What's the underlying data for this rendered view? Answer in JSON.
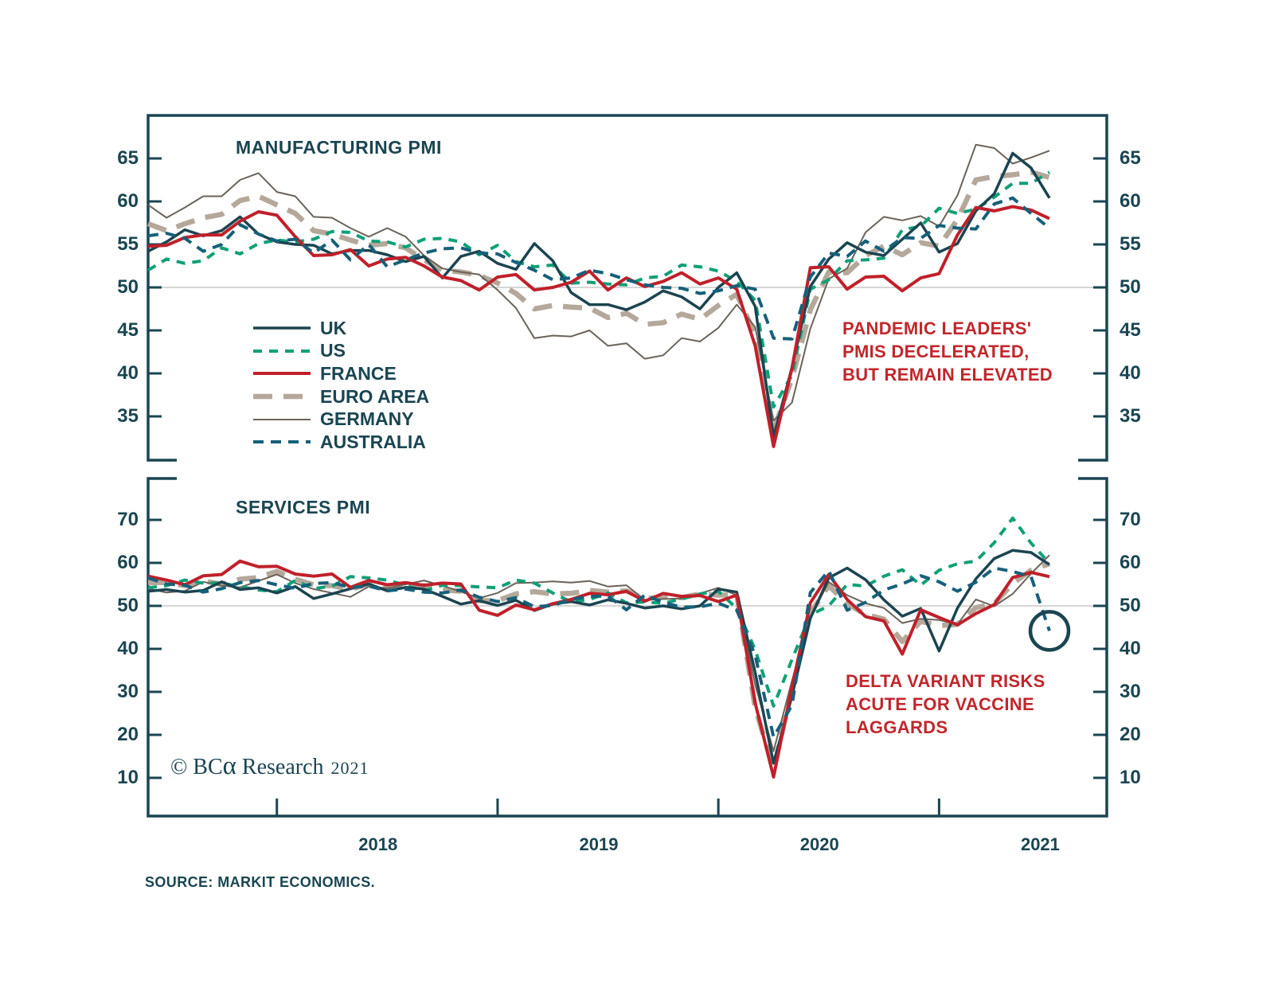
{
  "figure": {
    "background": "#ffffff",
    "axis_color": "#1A4552",
    "grid_color": "#C9C9C9",
    "copyright_prefix": "© BC",
    "copyright_alpha": "α",
    "copyright_suffix": " Research",
    "copyright_year": "2021",
    "source": "SOURCE: MARKIT ECONOMICS."
  },
  "legend": {
    "position": "inside-top-panel-left",
    "entries": [
      {
        "label": "UK",
        "color": "#1B4450",
        "width": 3.5,
        "dash": null
      },
      {
        "label": "US",
        "color": "#0FA077",
        "width": 4,
        "dash": "11 9"
      },
      {
        "label": "FRANCE",
        "color": "#C0202A",
        "width": 4,
        "dash": null
      },
      {
        "label": "EURO AREA",
        "color": "#B4A89A",
        "width": 6.5,
        "dash": "24 14"
      },
      {
        "label": "GERMANY",
        "color": "#6B6359",
        "width": 2,
        "dash": null
      },
      {
        "label": "AUSTRALIA",
        "color": "#16607A",
        "width": 4,
        "dash": "13 9"
      }
    ]
  },
  "x_axis": {
    "year_labels": [
      "2018",
      "2019",
      "2020",
      "2021"
    ]
  },
  "annotations": {
    "manufacturing": {
      "color": "#C1262B",
      "lines": [
        "PANDEMIC LEADERS'",
        "PMIS DECELERATED,",
        "BUT REMAIN ELEVATED"
      ]
    },
    "services": {
      "color": "#C1262B",
      "lines": [
        "DELTA VARIANT RISKS",
        "ACUTE FOR VACCINE",
        "LAGGARDS"
      ]
    },
    "circle": {
      "panel": "SERVICES PMI",
      "series": "AUSTRALIA",
      "month_index": 49,
      "value": 44.2,
      "radius": 24,
      "color": "#1A4552"
    }
  },
  "chart_data": [
    {
      "type": "line",
      "title": "MANUFACTURING PMI",
      "x_start": "2017-06",
      "x_end": "2021-07",
      "x_freq": "monthly",
      "ylim": [
        31,
        70
      ],
      "yticks": [
        65,
        60,
        55,
        50,
        45,
        40,
        35
      ],
      "gridline_at": 50,
      "series": [
        {
          "name": "UK",
          "values": [
            54.2,
            55.3,
            56.7,
            56.0,
            56.6,
            58.2,
            56.2,
            55.3,
            55.0,
            54.9,
            53.9,
            54.3,
            54.3,
            53.8,
            53.0,
            53.6,
            51.1,
            53.6,
            54.2,
            52.8,
            52.1,
            55.1,
            53.1,
            49.4,
            48.0,
            48.0,
            47.4,
            48.3,
            49.6,
            48.9,
            47.5,
            50.0,
            51.7,
            47.8,
            32.6,
            40.7,
            50.1,
            53.3,
            55.2,
            54.1,
            53.7,
            55.6,
            57.5,
            54.1,
            55.1,
            58.9,
            60.9,
            65.6,
            63.9,
            60.4
          ]
        },
        {
          "name": "US",
          "values": [
            52.0,
            53.3,
            52.8,
            53.1,
            54.6,
            53.9,
            55.1,
            55.5,
            55.3,
            55.6,
            56.5,
            56.4,
            55.4,
            55.3,
            54.7,
            55.6,
            55.7,
            55.3,
            53.8,
            54.9,
            53.0,
            52.4,
            52.6,
            50.5,
            50.6,
            50.4,
            50.3,
            51.1,
            51.3,
            52.6,
            52.4,
            51.9,
            50.7,
            48.5,
            36.1,
            39.8,
            49.8,
            50.9,
            53.1,
            53.2,
            53.4,
            56.7,
            57.1,
            59.2,
            58.6,
            59.1,
            60.5,
            62.1,
            62.1,
            63.4
          ]
        },
        {
          "name": "FRANCE",
          "values": [
            54.8,
            54.9,
            55.8,
            56.1,
            56.1,
            57.7,
            58.8,
            58.4,
            55.9,
            53.7,
            53.8,
            54.4,
            52.5,
            53.3,
            53.5,
            52.5,
            51.2,
            50.8,
            49.7,
            51.2,
            51.5,
            49.7,
            50.0,
            50.6,
            51.9,
            49.7,
            51.1,
            50.1,
            50.7,
            51.7,
            50.4,
            51.1,
            49.8,
            43.2,
            31.5,
            40.6,
            52.3,
            52.4,
            49.8,
            51.2,
            51.3,
            49.6,
            51.1,
            51.6,
            56.1,
            59.3,
            58.9,
            59.4,
            59.0,
            58.0
          ]
        },
        {
          "name": "EURO AREA",
          "values": [
            57.4,
            56.6,
            57.4,
            58.1,
            58.5,
            60.1,
            60.6,
            59.6,
            58.6,
            56.6,
            56.2,
            55.5,
            54.9,
            55.1,
            54.6,
            53.2,
            52.0,
            51.8,
            51.4,
            50.5,
            49.3,
            47.5,
            47.9,
            47.7,
            47.6,
            46.5,
            47.0,
            45.7,
            45.9,
            46.9,
            46.3,
            47.9,
            49.2,
            44.5,
            33.4,
            39.4,
            47.4,
            51.8,
            51.7,
            53.7,
            54.8,
            53.8,
            55.2,
            54.8,
            57.9,
            62.5,
            62.9,
            63.1,
            63.4,
            62.8
          ]
        },
        {
          "name": "GERMANY",
          "values": [
            59.6,
            58.1,
            59.3,
            60.6,
            60.6,
            62.5,
            63.3,
            61.1,
            60.6,
            58.2,
            58.1,
            56.9,
            55.9,
            56.9,
            55.9,
            53.7,
            52.2,
            51.8,
            51.5,
            49.7,
            47.6,
            44.1,
            44.4,
            44.3,
            45.0,
            43.2,
            43.5,
            41.7,
            42.1,
            44.1,
            43.7,
            45.3,
            48.0,
            45.4,
            34.5,
            36.6,
            45.2,
            51.0,
            52.2,
            56.4,
            58.2,
            57.8,
            58.3,
            57.1,
            60.7,
            66.6,
            66.2,
            64.4,
            65.1,
            65.9
          ]
        },
        {
          "name": "AUSTRALIA",
          "values": [
            56.0,
            56.3,
            55.7,
            54.2,
            55.0,
            57.3,
            56.2,
            55.4,
            55.6,
            54.0,
            55.5,
            53.2,
            55.0,
            52.4,
            53.2,
            54.0,
            54.5,
            54.6,
            54.0,
            53.9,
            52.9,
            52.0,
            50.9,
            51.1,
            52.0,
            51.6,
            50.9,
            50.3,
            50.0,
            49.9,
            49.3,
            49.6,
            50.2,
            49.8,
            44.1,
            44.0,
            51.2,
            54.0,
            53.6,
            55.4,
            54.2,
            55.8,
            55.7,
            57.2,
            56.9,
            56.8,
            59.7,
            60.4,
            58.6,
            56.9
          ]
        }
      ]
    },
    {
      "type": "line",
      "title": "SERVICES PMI",
      "x_start": "2017-06",
      "x_end": "2021-07",
      "x_freq": "monthly",
      "ylim": [
        1,
        80
      ],
      "yticks": [
        70,
        60,
        50,
        40,
        30,
        20,
        10
      ],
      "gridline_at": 50,
      "series": [
        {
          "name": "UK",
          "values": [
            53.4,
            53.8,
            53.2,
            53.6,
            55.6,
            53.8,
            54.2,
            53.0,
            54.5,
            51.7,
            52.8,
            54.0,
            55.1,
            53.5,
            54.3,
            53.9,
            52.2,
            50.4,
            51.2,
            50.1,
            51.3,
            48.9,
            50.4,
            51.0,
            50.2,
            51.4,
            50.6,
            49.5,
            50.0,
            49.3,
            50.0,
            53.9,
            53.2,
            34.5,
            13.4,
            29.0,
            47.1,
            56.5,
            58.8,
            56.1,
            51.4,
            47.6,
            49.4,
            39.5,
            49.5,
            56.3,
            61.0,
            62.9,
            62.4,
            59.6
          ]
        },
        {
          "name": "US",
          "values": [
            54.2,
            54.7,
            56.0,
            55.3,
            55.3,
            54.5,
            53.7,
            53.3,
            55.9,
            54.0,
            54.6,
            56.8,
            56.5,
            56.0,
            54.8,
            53.5,
            54.8,
            54.7,
            54.4,
            54.2,
            56.0,
            55.3,
            53.0,
            50.9,
            51.5,
            53.0,
            50.7,
            50.9,
            50.6,
            51.6,
            52.8,
            53.4,
            49.4,
            39.8,
            26.7,
            37.5,
            47.9,
            50.0,
            55.0,
            54.6,
            56.9,
            58.4,
            54.8,
            58.3,
            59.8,
            60.4,
            64.7,
            70.4,
            64.6,
            59.9
          ]
        },
        {
          "name": "FRANCE",
          "values": [
            56.9,
            56.0,
            54.9,
            57.0,
            57.3,
            60.4,
            59.1,
            59.2,
            57.4,
            56.9,
            57.4,
            54.3,
            55.9,
            54.9,
            55.4,
            54.8,
            55.3,
            55.1,
            49.0,
            47.8,
            50.2,
            49.1,
            50.5,
            51.5,
            52.9,
            52.6,
            53.4,
            51.1,
            52.9,
            52.2,
            52.4,
            51.0,
            52.5,
            27.4,
            10.2,
            31.1,
            50.7,
            57.3,
            51.5,
            47.5,
            46.5,
            38.8,
            49.1,
            47.3,
            45.6,
            48.2,
            50.3,
            56.6,
            57.8,
            56.8
          ]
        },
        {
          "name": "EURO AREA",
          "values": [
            55.4,
            55.4,
            54.7,
            55.8,
            55.0,
            56.2,
            56.6,
            58.0,
            56.2,
            54.9,
            54.7,
            53.8,
            55.2,
            54.2,
            54.4,
            54.7,
            53.7,
            53.4,
            51.2,
            51.2,
            52.8,
            53.3,
            52.8,
            52.9,
            53.6,
            53.2,
            53.5,
            51.6,
            52.2,
            51.9,
            52.8,
            52.5,
            52.6,
            26.4,
            12.0,
            30.5,
            48.3,
            54.7,
            50.5,
            48.0,
            46.9,
            41.7,
            46.4,
            45.4,
            45.7,
            49.6,
            50.5,
            55.2,
            58.3,
            59.8
          ]
        },
        {
          "name": "GERMANY",
          "values": [
            54.0,
            53.1,
            53.5,
            55.6,
            54.7,
            54.3,
            55.8,
            57.3,
            55.3,
            53.9,
            53.0,
            52.1,
            54.5,
            54.1,
            55.0,
            55.9,
            54.7,
            53.3,
            51.8,
            53.0,
            55.3,
            55.4,
            55.7,
            55.4,
            55.8,
            54.5,
            54.8,
            51.4,
            51.6,
            51.7,
            52.9,
            54.2,
            52.5,
            31.7,
            16.2,
            32.6,
            47.3,
            55.6,
            52.5,
            50.6,
            49.5,
            46.0,
            47.0,
            46.7,
            45.7,
            51.5,
            49.9,
            52.8,
            57.5,
            61.8
          ]
        },
        {
          "name": "AUSTRALIA",
          "values": [
            56.5,
            55.1,
            54.8,
            53.2,
            54.0,
            55.4,
            55.9,
            54.9,
            54.1,
            55.2,
            55.4,
            54.3,
            54.6,
            53.5,
            53.9,
            53.2,
            53.0,
            53.7,
            52.0,
            51.0,
            51.9,
            49.8,
            50.1,
            51.5,
            52.2,
            52.3,
            49.1,
            52.5,
            50.8,
            49.7,
            49.8,
            50.6,
            49.0,
            38.5,
            19.5,
            26.9,
            53.1,
            58.2,
            49.0,
            50.8,
            53.7,
            55.1,
            57.0,
            55.6,
            53.4,
            55.5,
            58.8,
            58.0,
            56.8,
            44.2
          ]
        }
      ]
    }
  ]
}
